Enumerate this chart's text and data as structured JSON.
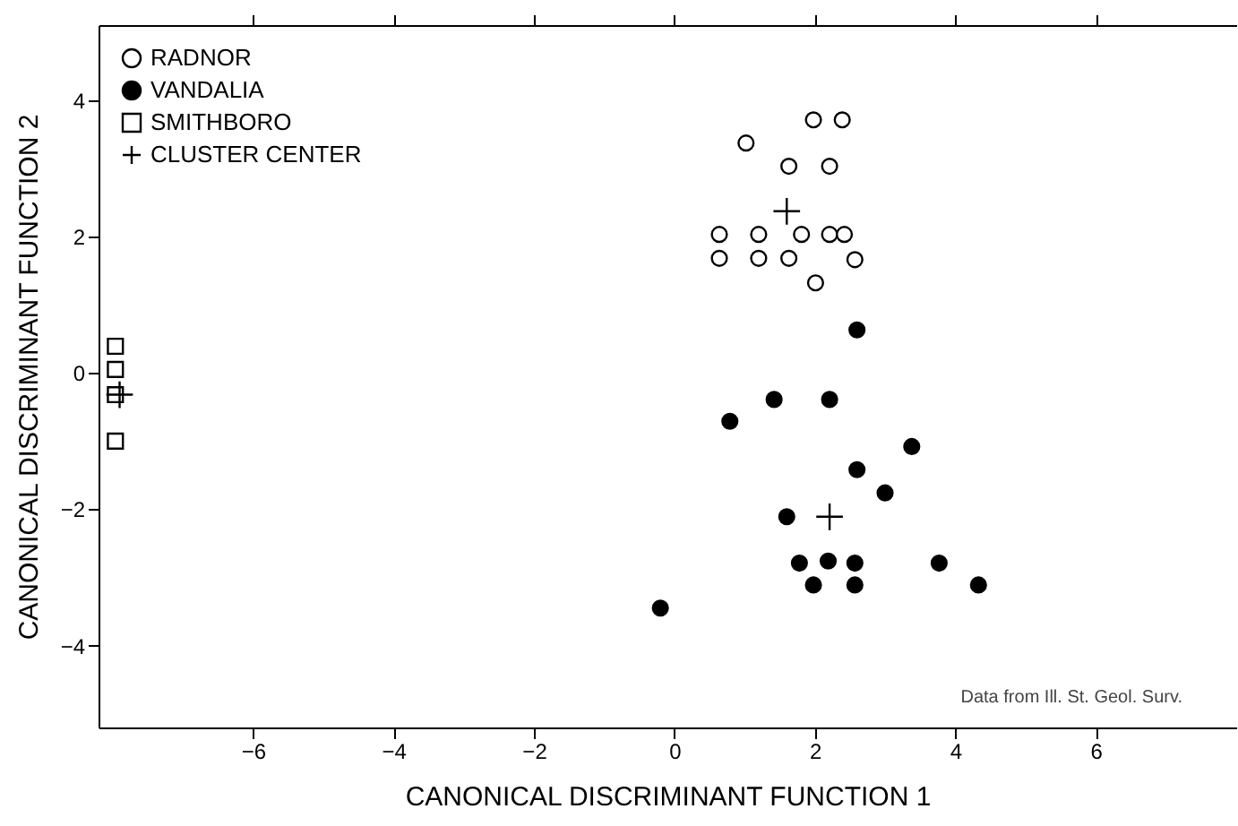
{
  "chart_data": {
    "type": "scatter",
    "xlabel": "CANONICAL DISCRIMINANT FUNCTION 1",
    "ylabel": "CANONICAL DISCRIMINANT FUNCTION 2",
    "xlim": [
      -8.2,
      8.0
    ],
    "xticks": [
      -6,
      -4,
      -2,
      0,
      2,
      4,
      6
    ],
    "ylim": [
      -5.2,
      5.1
    ],
    "yticks": [
      -4,
      -2,
      0,
      2,
      4
    ],
    "legend": "top left",
    "grid": false,
    "annotations": [
      "Data from Ill. St. Geol. Surv."
    ],
    "series": [
      {
        "name": "RADNOR",
        "color": "#ffffff",
        "marker": "circle",
        "x": [
          1.98,
          2.39,
          1.02,
          1.63,
          2.21,
          0.64,
          1.2,
          1.81,
          2.21,
          2.42,
          0.64,
          1.2,
          1.63,
          2.57,
          2.01
        ],
        "values": [
          3.71,
          3.71,
          3.37,
          3.03,
          3.03,
          2.03,
          2.03,
          2.03,
          2.03,
          2.03,
          1.68,
          1.68,
          1.68,
          1.66,
          1.32
        ]
      },
      {
        "name": "VANDALIA",
        "color": "#000000",
        "marker": "circle",
        "x": [
          2.6,
          1.42,
          2.21,
          0.79,
          3.38,
          2.6,
          3.0,
          1.6,
          1.78,
          2.19,
          2.57,
          3.77,
          1.98,
          2.57,
          4.33,
          -0.2
        ],
        "values": [
          0.63,
          -0.39,
          -0.39,
          -0.71,
          -1.08,
          -1.42,
          -1.76,
          -2.11,
          -2.79,
          -2.76,
          -2.79,
          -2.79,
          -3.11,
          -3.11,
          -3.11,
          -3.45
        ]
      },
      {
        "name": "SMITHBORO",
        "color": "#ffffff",
        "marker": "square",
        "x": [
          -7.96,
          -7.96,
          -7.96,
          -7.96
        ],
        "values": [
          0.39,
          0.05,
          -0.32,
          -1.0
        ]
      },
      {
        "name": "CLUSTER CENTER",
        "color": "#000000",
        "marker": "cross",
        "x": [
          1.6,
          2.21,
          -7.9
        ],
        "values": [
          2.37,
          -2.11,
          -0.32
        ]
      }
    ]
  }
}
